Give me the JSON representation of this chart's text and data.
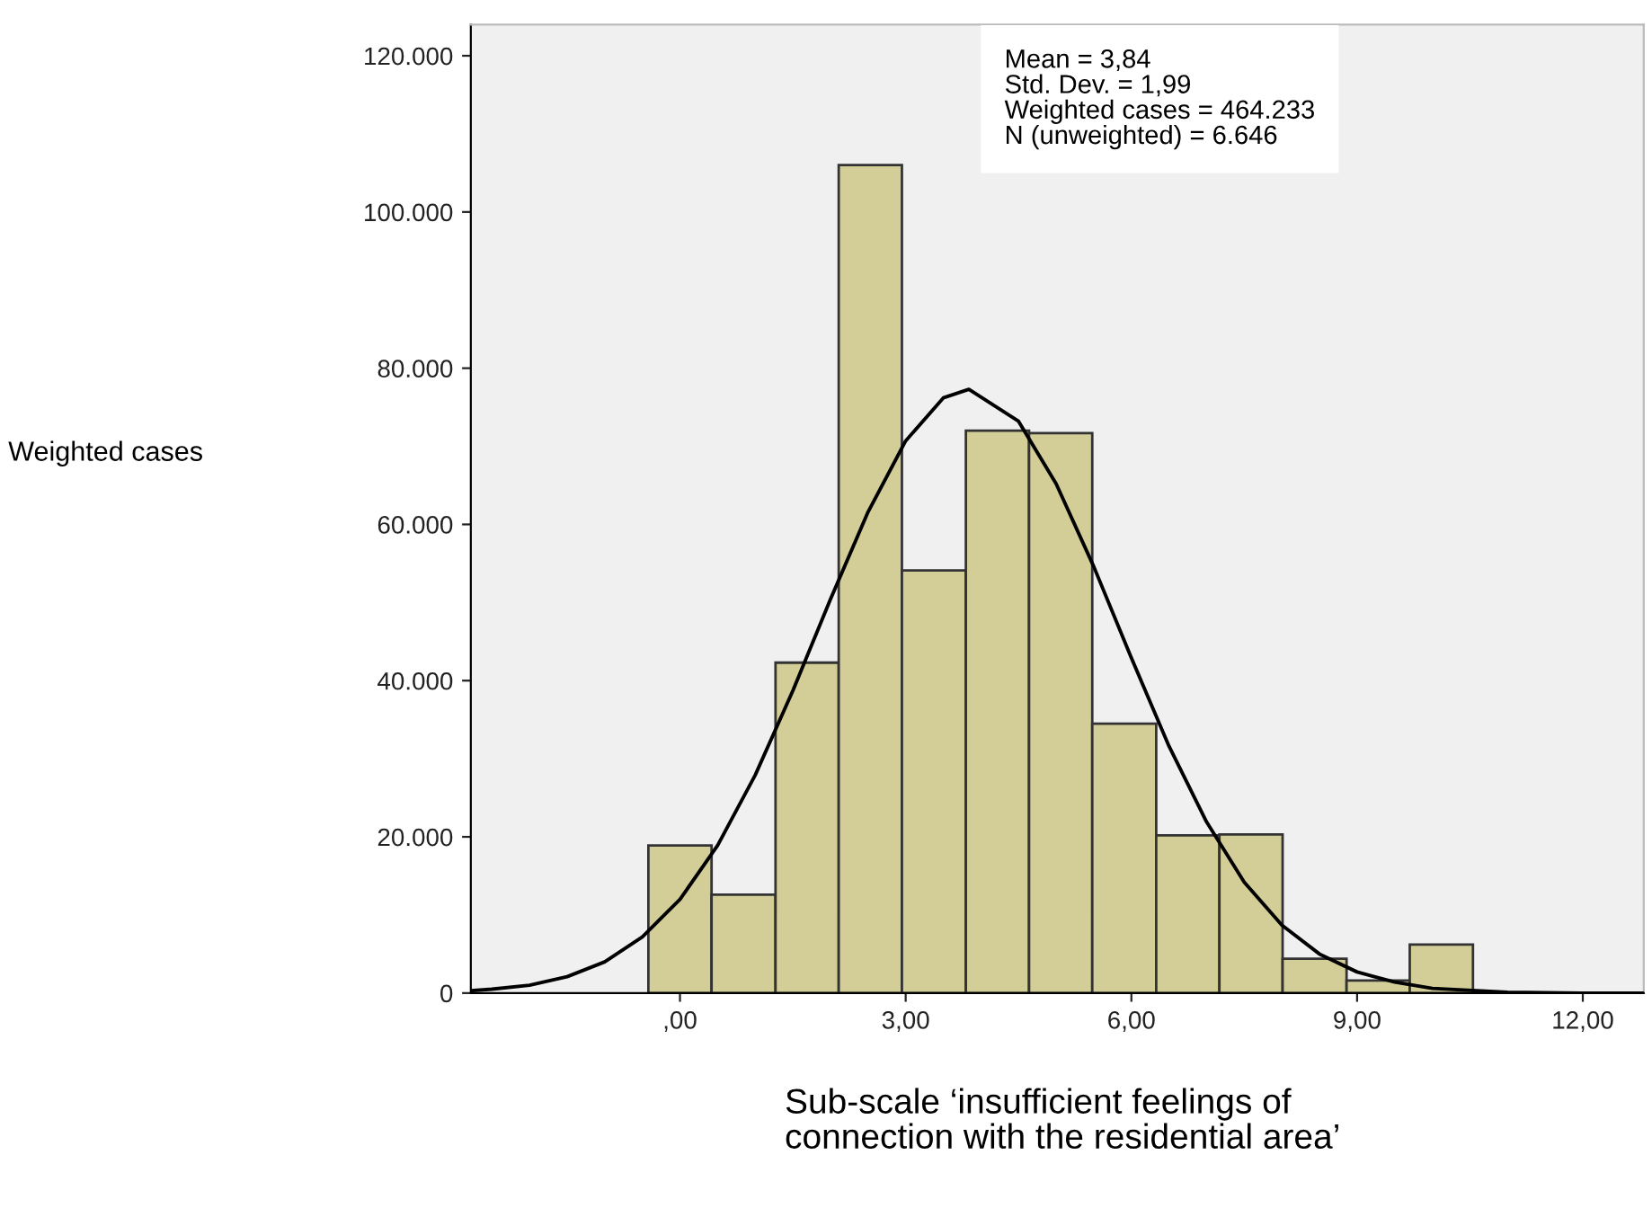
{
  "chart_data": {
    "type": "histogram",
    "xlabel": "Sub-scale ‘insufficient feelings of\nconnection with the residential area’",
    "annotations": [
      "Weighted cases",
      "Mean = 3,84\nStd. Dev. = 1,99\nWeighted cases = 464.233\nN (unweighted) = 6.646"
    ],
    "series": [
      {
        "color": "#d3ce97",
        "bins": [
          -0.42,
          0.42,
          1.27,
          2.11,
          2.95,
          3.8,
          4.64,
          5.48,
          6.33,
          7.17,
          8.01,
          8.86,
          9.7,
          10.54
        ],
        "values": [
          18900,
          12600,
          42300,
          106000,
          54100,
          72000,
          71700,
          34500,
          20200,
          20300,
          4400,
          1600,
          6200
        ]
      },
      {
        "type": "line",
        "color": "#000000",
        "x": [
          -2.78,
          -2.5,
          -2,
          -1.5,
          -1,
          -0.5,
          0,
          0.5,
          1,
          1.5,
          2,
          2.5,
          3,
          3.5,
          3.84,
          4.5,
          5,
          5.5,
          6,
          6.5,
          7,
          7.5,
          8,
          8.5,
          9,
          9.5,
          10,
          11,
          12,
          12.8
        ],
        "values": [
          300,
          500,
          1000,
          2100,
          4000,
          7200,
          12000,
          18900,
          27900,
          38700,
          50400,
          61600,
          70700,
          76200,
          77300,
          73200,
          65200,
          54600,
          42900,
          31600,
          21900,
          14200,
          8700,
          5000,
          2700,
          1400,
          600,
          100,
          0,
          0
        ]
      }
    ],
    "xlim": [
      -2.78,
      12.81
    ],
    "ylim": [
      0,
      124000
    ],
    "xticks": [
      {
        "value": 0,
        "label": ",00"
      },
      {
        "value": 3,
        "label": "3,00"
      },
      {
        "value": 6,
        "label": "6,00"
      },
      {
        "value": 9,
        "label": "9,00"
      },
      {
        "value": 12,
        "label": "12,00"
      }
    ],
    "yticks": [
      0,
      {
        "value": 20000,
        "label": "20.000"
      },
      {
        "value": 40000,
        "label": "40.000"
      },
      {
        "value": 60000,
        "label": "60.000"
      },
      {
        "value": 80000,
        "label": "80.000"
      },
      {
        "value": 100000,
        "label": "100.000"
      },
      {
        "value": 120000,
        "label": "120.000"
      }
    ],
    "grid": false,
    "legend": false
  }
}
